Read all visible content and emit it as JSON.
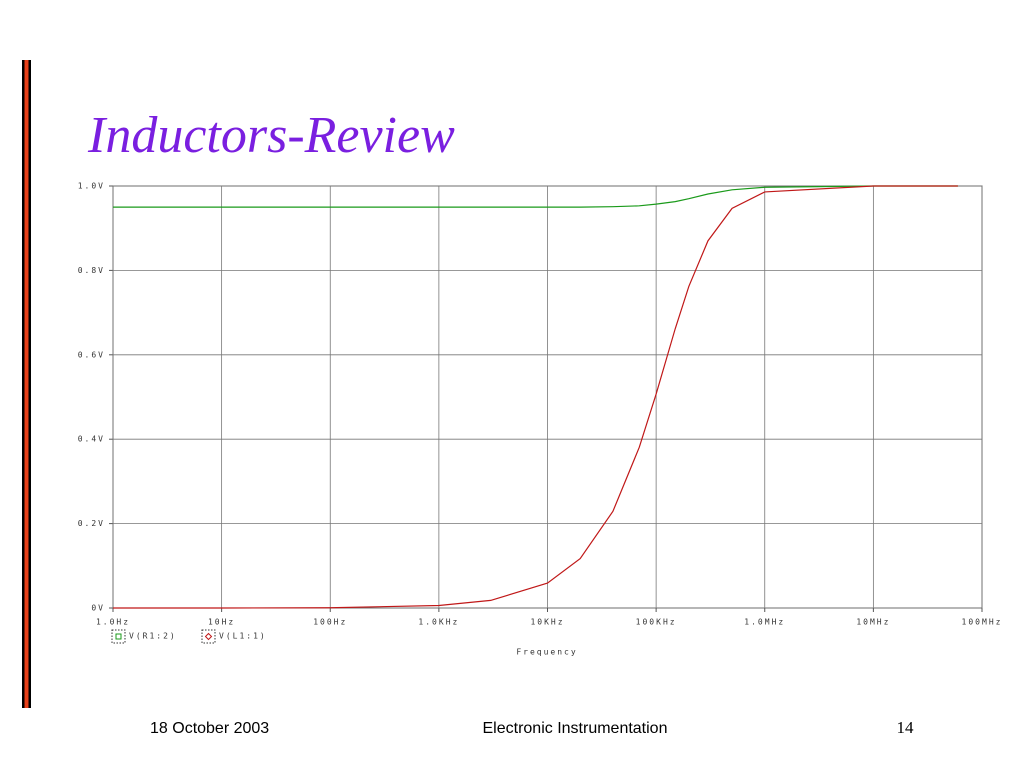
{
  "slide": {
    "title": "Inductors-Review",
    "footer_date": "18 October 2003",
    "footer_center": "Electronic Instrumentation",
    "page_number": "14"
  },
  "chart_data": {
    "type": "line",
    "xscale": "log",
    "xlabel": "Frequency",
    "grid": true,
    "x": [
      1,
      10,
      100,
      1000,
      3000,
      10000,
      20000,
      40000,
      70000,
      100000,
      150000,
      200000,
      300000,
      500000,
      1000000,
      10000000,
      60000000
    ],
    "series": [
      {
        "name": "V(R1:2)",
        "color": "#1a9a1a",
        "marker": "square",
        "values": [
          0.95,
          0.95,
          0.95,
          0.95,
          0.95,
          0.95,
          0.95,
          0.951,
          0.953,
          0.957,
          0.963,
          0.97,
          0.981,
          0.991,
          0.997,
          1.0,
          1.0
        ]
      },
      {
        "name": "V(L1:1)",
        "color": "#c01818",
        "marker": "diamond",
        "values": [
          0,
          0,
          0.0006,
          0.006,
          0.018,
          0.059,
          0.117,
          0.229,
          0.381,
          0.507,
          0.662,
          0.762,
          0.87,
          0.947,
          0.986,
          1.0,
          1.0
        ]
      }
    ],
    "xlim": [
      1,
      100000000
    ],
    "xticks": [
      {
        "value": 1,
        "label": "1.0Hz"
      },
      {
        "value": 10,
        "label": "10Hz"
      },
      {
        "value": 100,
        "label": "100Hz"
      },
      {
        "value": 1000,
        "label": "1.0KHz"
      },
      {
        "value": 10000,
        "label": "10KHz"
      },
      {
        "value": 100000,
        "label": "100KHz"
      },
      {
        "value": 1000000,
        "label": "1.0MHz"
      },
      {
        "value": 10000000,
        "label": "10MHz"
      },
      {
        "value": 100000000,
        "label": "100MHz"
      }
    ],
    "ylim": [
      0,
      1
    ],
    "yticks": [
      {
        "value": 0,
        "label": "0V"
      },
      {
        "value": 0.2,
        "label": "0.2V"
      },
      {
        "value": 0.4,
        "label": "0.4V"
      },
      {
        "value": 0.6,
        "label": "0.6V"
      },
      {
        "value": 0.8,
        "label": "0.8V"
      },
      {
        "value": 1,
        "label": "1.0V"
      }
    ]
  }
}
